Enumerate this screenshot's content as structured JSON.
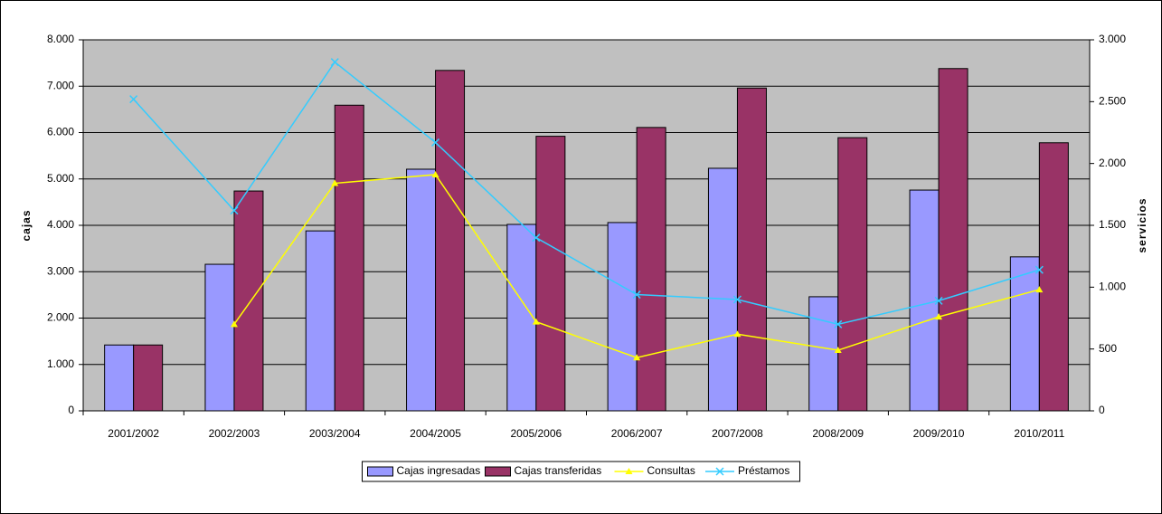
{
  "chart_data": {
    "type": "bar-line",
    "categories": [
      "2001/2002",
      "2002/2003",
      "2003/2004",
      "2004/2005",
      "2005/2006",
      "2006/2007",
      "2007/2008",
      "2008/2009",
      "2009/2010",
      "2010/2011"
    ],
    "ylabel": "cajas",
    "y2label": "servicios",
    "ylim": [
      0,
      8000
    ],
    "yticks": [
      0,
      {
        "value": 1000,
        "label": "1.000"
      },
      {
        "value": 2000,
        "label": "2.000"
      },
      {
        "value": 3000,
        "label": "3.000"
      },
      {
        "value": 4000,
        "label": "4.000"
      },
      {
        "value": 5000,
        "label": "5.000"
      },
      {
        "value": 6000,
        "label": "6.000"
      },
      {
        "value": 7000,
        "label": "7.000"
      },
      {
        "value": 8000,
        "label": "8.000"
      }
    ],
    "y2lim": [
      0,
      3000
    ],
    "y2ticks": [
      0,
      500,
      {
        "value": 1000,
        "label": "1.000"
      },
      {
        "value": 1500,
        "label": "1.500"
      },
      {
        "value": 2000,
        "label": "2.000"
      },
      {
        "value": 2500,
        "label": "2.500"
      },
      {
        "value": 3000,
        "label": "3.000"
      }
    ],
    "grid": true,
    "legend": "bottom",
    "series": [
      {
        "name": "Cajas ingresadas",
        "kind": "bar",
        "color": "#9999ff",
        "values": [
          1420,
          3160,
          3880,
          5210,
          4020,
          4060,
          5230,
          2460,
          4760,
          3320
        ]
      },
      {
        "name": "Cajas transferidas",
        "kind": "bar",
        "color": "#993366",
        "values": [
          1420,
          4740,
          6590,
          7340,
          5920,
          6110,
          6960,
          5890,
          7380,
          5780
        ]
      },
      {
        "name": "Consultas",
        "kind": "line",
        "axis": "y2",
        "color": "#ffff00",
        "marker": "triangle",
        "values": [
          null,
          700,
          1840,
          1910,
          720,
          430,
          620,
          490,
          760,
          980
        ]
      },
      {
        "name": "Préstamos",
        "kind": "line",
        "axis": "y2",
        "color": "#33ccff",
        "marker": "x",
        "values": [
          2520,
          1620,
          2820,
          2170,
          1400,
          940,
          900,
          700,
          890,
          1140
        ]
      }
    ]
  }
}
